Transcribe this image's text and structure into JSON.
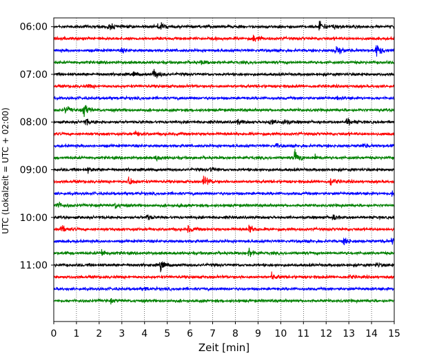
{
  "chart_data": {
    "type": "line",
    "title": "",
    "xlabel": "Zeit  [min]",
    "ylabel": "UTC (Lokalzeit = UTC + 02:00)",
    "xlim": [
      0,
      15
    ],
    "xticks": [
      0,
      1,
      2,
      3,
      4,
      5,
      6,
      7,
      8,
      9,
      10,
      11,
      12,
      13,
      14,
      15
    ],
    "ylim": [
      "05:49",
      "12:11"
    ],
    "y_tick_labels": [
      "06:00",
      "07:00",
      "08:00",
      "09:00",
      "10:00",
      "11:00"
    ],
    "trace_interval_minutes": 15,
    "grid": "vertical dotted",
    "legend": "none",
    "color_cycle": [
      "#000000",
      "#ff0000",
      "#0000ff",
      "#008000"
    ],
    "series": [
      {
        "start": "06:00",
        "color": "#000000",
        "events": [
          [
            2.4,
            0.5
          ],
          [
            4.6,
            0.7
          ],
          [
            11.7,
            0.8
          ],
          [
            12.3,
            0.3
          ]
        ]
      },
      {
        "start": "06:15",
        "color": "#ff0000",
        "events": [
          [
            8.8,
            0.5
          ]
        ]
      },
      {
        "start": "06:30",
        "color": "#0000ff",
        "events": [
          [
            12.4,
            0.9
          ],
          [
            14.2,
            1.0
          ],
          [
            3.0,
            0.2
          ]
        ]
      },
      {
        "start": "06:45",
        "color": "#008000",
        "events": [
          [
            6.5,
            0.2
          ]
        ]
      },
      {
        "start": "07:00",
        "color": "#000000",
        "events": [
          [
            4.4,
            0.7
          ],
          [
            3.5,
            0.3
          ]
        ]
      },
      {
        "start": "07:15",
        "color": "#ff0000",
        "events": [
          [
            1.5,
            0.2
          ]
        ]
      },
      {
        "start": "07:30",
        "color": "#0000ff",
        "events": [
          [
            12.5,
            0.2
          ]
        ]
      },
      {
        "start": "07:45",
        "color": "#008000",
        "events": [
          [
            1.3,
            1.0
          ],
          [
            0.5,
            0.5
          ]
        ]
      },
      {
        "start": "08:00",
        "color": "#000000",
        "events": [
          [
            1.4,
            0.4
          ],
          [
            8.1,
            0.3
          ],
          [
            9.5,
            0.4
          ],
          [
            10.1,
            0.4
          ],
          [
            12.9,
            0.5
          ]
        ]
      },
      {
        "start": "08:15",
        "color": "#ff0000",
        "events": [
          [
            3.6,
            0.3
          ]
        ]
      },
      {
        "start": "08:30",
        "color": "#0000ff",
        "events": [
          [
            9.8,
            0.2
          ],
          [
            13.6,
            0.2
          ]
        ]
      },
      {
        "start": "08:45",
        "color": "#008000",
        "events": [
          [
            10.6,
            0.9
          ],
          [
            4.5,
            0.4
          ],
          [
            11.5,
            0.3
          ]
        ]
      },
      {
        "start": "09:00",
        "color": "#000000",
        "events": [
          [
            1.5,
            0.3
          ],
          [
            6.9,
            0.3
          ]
        ]
      },
      {
        "start": "09:15",
        "color": "#ff0000",
        "events": [
          [
            3.3,
            0.6
          ],
          [
            6.6,
            0.8
          ],
          [
            12.2,
            0.5
          ]
        ]
      },
      {
        "start": "09:30",
        "color": "#0000ff",
        "events": [
          [
            14.9,
            0.3
          ]
        ]
      },
      {
        "start": "09:45",
        "color": "#008000",
        "events": [
          [
            0.1,
            0.7
          ],
          [
            2.7,
            0.4
          ],
          [
            5.5,
            0.2
          ]
        ]
      },
      {
        "start": "10:00",
        "color": "#000000",
        "events": [
          [
            4.1,
            0.3
          ],
          [
            12.3,
            0.3
          ]
        ]
      },
      {
        "start": "10:15",
        "color": "#ff0000",
        "events": [
          [
            0.3,
            0.6
          ],
          [
            5.9,
            0.4
          ],
          [
            8.6,
            0.7
          ]
        ]
      },
      {
        "start": "10:30",
        "color": "#0000ff",
        "events": [
          [
            12.8,
            0.5
          ],
          [
            14.9,
            0.6
          ]
        ]
      },
      {
        "start": "10:45",
        "color": "#008000",
        "events": [
          [
            2.1,
            0.5
          ],
          [
            8.6,
            0.7
          ]
        ]
      },
      {
        "start": "11:00",
        "color": "#000000",
        "events": [
          [
            4.7,
            0.7
          ],
          [
            14.2,
            0.3
          ]
        ]
      },
      {
        "start": "11:15",
        "color": "#ff0000",
        "events": [
          [
            9.6,
            0.4
          ],
          [
            13.0,
            0.2
          ]
        ]
      },
      {
        "start": "11:30",
        "color": "#0000ff",
        "events": [
          [
            4.0,
            0.2
          ]
        ]
      },
      {
        "start": "11:45",
        "color": "#008000",
        "events": [
          [
            2.5,
            0.2
          ]
        ]
      }
    ]
  }
}
